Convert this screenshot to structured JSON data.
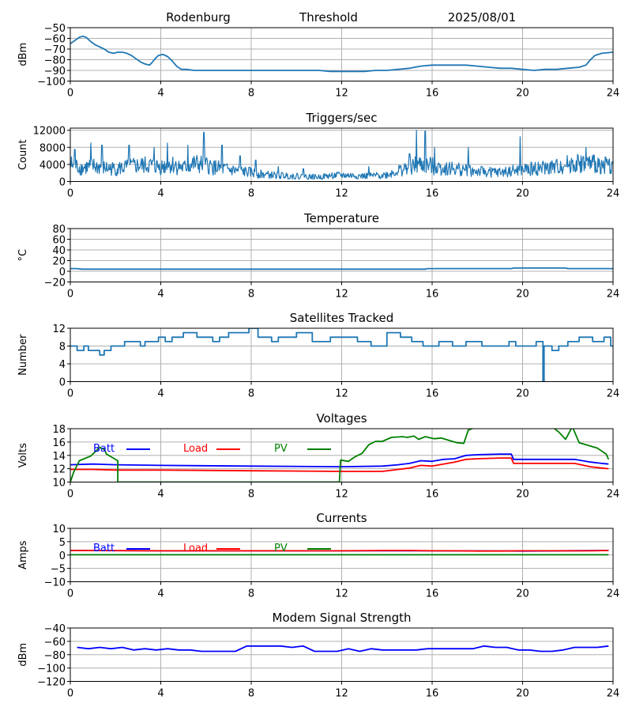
{
  "header": {
    "station": "Rodenburg",
    "mode": "Threshold",
    "date": "2025/08/01"
  },
  "legend_labels": [
    "Batt",
    "Load",
    "PV"
  ],
  "chart_data": [
    {
      "type": "line",
      "title": "",
      "ylabel": "dBm",
      "xlim": [
        0,
        24
      ],
      "ylim": [
        -100,
        -50
      ],
      "yticks": [
        -100,
        -90,
        -80,
        -70,
        -60,
        -50
      ],
      "xticks": [
        0,
        4,
        8,
        12,
        16,
        20,
        24
      ],
      "grid": true,
      "series": [
        {
          "color": "#1f77b4",
          "x": [
            0,
            0.2,
            0.4,
            0.55,
            0.7,
            0.9,
            1.1,
            1.3,
            1.5,
            1.7,
            1.9,
            2.1,
            2.3,
            2.5,
            2.7,
            2.9,
            3.1,
            3.3,
            3.5,
            3.6,
            3.75,
            3.9,
            4.1,
            4.3,
            4.5,
            4.7,
            4.9,
            5.1,
            5.5,
            6,
            7,
            8,
            9,
            10,
            11,
            11.5,
            12,
            12.5,
            13,
            13.5,
            14,
            14.5,
            15,
            15.5,
            16,
            16.5,
            17,
            17.5,
            18,
            18.5,
            19,
            19.5,
            20,
            20.5,
            21,
            21.5,
            22,
            22.5,
            22.8,
            23,
            23.2,
            23.5,
            24
          ],
          "y": [
            -65,
            -62,
            -59,
            -58,
            -59,
            -63,
            -66,
            -68,
            -70,
            -73,
            -74,
            -73,
            -73,
            -74,
            -76,
            -79,
            -82,
            -84,
            -85,
            -83,
            -79,
            -76,
            -75,
            -77,
            -81,
            -86,
            -89,
            -89,
            -90,
            -90,
            -90,
            -90,
            -90,
            -90,
            -90,
            -91,
            -91,
            -91,
            -91,
            -90,
            -90,
            -89,
            -88,
            -86,
            -85,
            -85,
            -85,
            -85,
            -86,
            -87,
            -88,
            -88,
            -89,
            -90,
            -89,
            -89,
            -88,
            -87,
            -85,
            -80,
            -76,
            -74,
            -73
          ]
        }
      ]
    },
    {
      "type": "line",
      "title": "Triggers/sec",
      "ylabel": "Count",
      "xlim": [
        0,
        24
      ],
      "ylim": [
        0,
        12500
      ],
      "yticks": [
        0,
        4000,
        8000,
        12000
      ],
      "xticks": [
        0,
        4,
        8,
        12,
        16,
        20,
        24
      ],
      "grid": true,
      "series": [
        {
          "color": "#1f77b4",
          "x": [
            0,
            0.5,
            1,
            1.5,
            2,
            2.5,
            3,
            3.5,
            4,
            4.5,
            5,
            5.5,
            6,
            6.5,
            7,
            7.5,
            8,
            8.5,
            9,
            9.5,
            10,
            10.5,
            11,
            11.5,
            12,
            12.5,
            13,
            13.5,
            14,
            14.5,
            15,
            15.5,
            16,
            16.5,
            17,
            17.5,
            18,
            18.5,
            19,
            19.5,
            20,
            20.5,
            21,
            21.5,
            22,
            22.5,
            23,
            23.5,
            24
          ],
          "y": [
            3800,
            3000,
            3400,
            3000,
            2800,
            3200,
            3500,
            3600,
            3300,
            3800,
            3000,
            3900,
            3600,
            3000,
            2600,
            2300,
            2000,
            1600,
            1400,
            1300,
            1200,
            1100,
            1000,
            1300,
            1400,
            1300,
            1200,
            1300,
            1500,
            2400,
            3200,
            3800,
            3400,
            3000,
            2800,
            2600,
            2200,
            2100,
            2000,
            2300,
            2600,
            2800,
            3000,
            3200,
            3800,
            4000,
            3900,
            3800,
            3500
          ],
          "peaks_x": [
            0.2,
            0.9,
            1.4,
            2.6,
            3.7,
            4.3,
            5.2,
            5.9,
            6.7,
            7.5,
            8.2,
            9.2,
            10.3,
            13.2,
            15.0,
            15.3,
            15.7,
            16.1,
            17.6,
            19.9,
            22.8
          ],
          "peaks_y": [
            7500,
            9000,
            8500,
            8500,
            8000,
            9000,
            8500,
            11500,
            8500,
            6000,
            5000,
            3500,
            3000,
            3500,
            6500,
            12000,
            11800,
            8000,
            8000,
            10500,
            8000
          ]
        }
      ]
    },
    {
      "type": "line",
      "title": "Temperature",
      "ylabel": "°C",
      "xlim": [
        0,
        24
      ],
      "ylim": [
        -20,
        80
      ],
      "yticks": [
        -20,
        0,
        20,
        40,
        60,
        80
      ],
      "xticks": [
        0,
        4,
        8,
        12,
        16,
        20,
        24
      ],
      "grid": true,
      "series": [
        {
          "color": "#1f77b4",
          "x": [
            0,
            0.3,
            0.5,
            4,
            8,
            12,
            15.7,
            15.8,
            19.5,
            19.6,
            21.9,
            22,
            24
          ],
          "y": [
            5,
            5,
            4,
            4,
            4,
            4,
            4,
            5,
            5,
            6,
            6,
            5,
            5
          ]
        }
      ]
    },
    {
      "type": "line",
      "title": "Satellites Tracked",
      "ylabel": "Number",
      "xlim": [
        0,
        24
      ],
      "ylim": [
        0,
        12
      ],
      "yticks": [
        0,
        4,
        8,
        12
      ],
      "xticks": [
        0,
        4,
        8,
        12,
        16,
        20,
        24
      ],
      "grid": true,
      "series": [
        {
          "color": "#1f77b4",
          "x": [
            0,
            0.3,
            0.3,
            0.6,
            0.6,
            0.8,
            0.8,
            1.3,
            1.3,
            1.5,
            1.5,
            1.8,
            1.8,
            2.4,
            2.4,
            3.1,
            3.1,
            3.3,
            3.3,
            3.9,
            3.9,
            4.2,
            4.2,
            4.5,
            4.5,
            5.0,
            5.0,
            5.6,
            5.6,
            6.3,
            6.3,
            6.6,
            6.6,
            7.0,
            7.0,
            7.9,
            7.9,
            8.3,
            8.3,
            8.9,
            8.9,
            9.2,
            9.2,
            10.0,
            10.0,
            10.7,
            10.7,
            11.5,
            11.5,
            12.7,
            12.7,
            13.3,
            13.3,
            14.0,
            14.0,
            14.6,
            14.6,
            15.1,
            15.1,
            15.6,
            15.6,
            16.3,
            16.3,
            16.9,
            16.9,
            17.5,
            17.5,
            18.2,
            18.2,
            19.4,
            19.4,
            19.7,
            19.7,
            20.6,
            20.6,
            20.9,
            20.9,
            20.95,
            20.95,
            21.3,
            21.3,
            21.6,
            21.6,
            22.0,
            22.0,
            22.5,
            22.5,
            23.1,
            23.1,
            23.6,
            23.6,
            23.9,
            23.9,
            24
          ],
          "y": [
            8,
            8,
            7,
            7,
            8,
            8,
            7,
            7,
            6,
            6,
            7,
            7,
            8,
            8,
            9,
            9,
            8,
            8,
            9,
            9,
            10,
            10,
            9,
            9,
            10,
            10,
            11,
            11,
            10,
            10,
            9,
            9,
            10,
            10,
            11,
            11,
            12,
            12,
            10,
            10,
            9,
            9,
            10,
            10,
            11,
            11,
            9,
            9,
            10,
            10,
            9,
            9,
            8,
            8,
            11,
            11,
            10,
            10,
            9,
            9,
            8,
            8,
            9,
            9,
            8,
            8,
            9,
            9,
            8,
            8,
            9,
            9,
            8,
            8,
            9,
            9,
            0,
            0,
            8,
            8,
            7,
            7,
            8,
            8,
            9,
            9,
            10,
            10,
            9,
            9,
            10,
            10,
            8,
            8
          ]
        }
      ]
    },
    {
      "type": "line",
      "title": "Voltages",
      "ylabel": "Volts",
      "xlim": [
        0,
        24
      ],
      "ylim": [
        10,
        18
      ],
      "yticks": [
        10,
        12,
        14,
        16,
        18
      ],
      "xticks": [
        0,
        4,
        8,
        12,
        16,
        20,
        24
      ],
      "grid": true,
      "series": [
        {
          "name": "Batt",
          "color": "#0000ff",
          "x": [
            0,
            1,
            2,
            4,
            8,
            12,
            13.8,
            14.5,
            15,
            15.5,
            16,
            16.5,
            17,
            17.5,
            18,
            19,
            19.5,
            19.6,
            22.3,
            23,
            23.5,
            23.8
          ],
          "y": [
            12.6,
            12.7,
            12.6,
            12.5,
            12.4,
            12.3,
            12.4,
            12.6,
            12.8,
            13.2,
            13.1,
            13.4,
            13.5,
            14.0,
            14.1,
            14.2,
            14.2,
            13.4,
            13.4,
            13.0,
            12.8,
            12.7
          ]
        },
        {
          "name": "Load",
          "color": "#ff0000",
          "x": [
            0,
            1,
            2,
            4,
            8,
            12,
            13.8,
            14.5,
            15,
            15.5,
            16,
            16.5,
            17,
            17.5,
            18,
            19,
            19.5,
            19.6,
            22.3,
            23,
            23.5,
            23.8
          ],
          "y": [
            11.9,
            11.9,
            11.8,
            11.8,
            11.7,
            11.6,
            11.6,
            11.9,
            12.1,
            12.5,
            12.4,
            12.7,
            13.0,
            13.4,
            13.5,
            13.6,
            13.6,
            12.8,
            12.8,
            12.3,
            12.1,
            12.0
          ],
          "note": "load"
        },
        {
          "name": "PV",
          "color": "#008000",
          "x": [
            0,
            0.15,
            0.4,
            0.9,
            1.15,
            1.3,
            1.5,
            1.6,
            2.1,
            2.1,
            11.9,
            11.95,
            12.3,
            12.6,
            12.9,
            13.2,
            13.5,
            13.8,
            14.2,
            14.7,
            14.9,
            15.2,
            15.4,
            15.7,
            16.1,
            16.4,
            16.8,
            17.1,
            17.4,
            17.6,
            18,
            21.3,
            21.6,
            21.9,
            22.2,
            22.5,
            22.9,
            23.3,
            23.7,
            23.8
          ],
          "y": [
            10,
            11.5,
            13.2,
            13.9,
            14.7,
            15.2,
            14.9,
            14.2,
            13.2,
            10,
            10,
            13.3,
            13.1,
            13.8,
            14.3,
            15.6,
            16.1,
            16.1,
            16.7,
            16.8,
            16.7,
            16.9,
            16.4,
            16.8,
            16.5,
            16.6,
            16.2,
            15.9,
            15.8,
            17.8,
            18.3,
            18.3,
            17.5,
            16.4,
            18.3,
            15.9,
            15.5,
            15.1,
            14.2,
            13.4
          ]
        }
      ]
    },
    {
      "type": "line",
      "title": "Currents",
      "ylabel": "Amps",
      "xlim": [
        0,
        24
      ],
      "ylim": [
        -10,
        10
      ],
      "yticks": [
        -10,
        -5,
        0,
        5,
        10
      ],
      "xticks": [
        0,
        4,
        8,
        12,
        16,
        20,
        24
      ],
      "grid": true,
      "series": [
        {
          "name": "Batt",
          "color": "#0000ff",
          "x": [
            0,
            4,
            8,
            12,
            16,
            20,
            23.8
          ],
          "y": [
            1.7,
            1.6,
            1.6,
            1.6,
            1.6,
            1.5,
            1.7
          ]
        },
        {
          "name": "Load",
          "color": "#ff0000",
          "x": [
            0,
            4,
            8,
            12,
            14,
            15,
            16,
            17,
            18,
            19,
            20,
            21,
            22,
            23,
            23.8
          ],
          "y": [
            1.7,
            1.6,
            1.6,
            1.6,
            1.7,
            1.7,
            1.6,
            1.6,
            1.5,
            1.5,
            1.6,
            1.6,
            1.6,
            1.6,
            1.7
          ]
        },
        {
          "name": "PV",
          "color": "#008000",
          "x": [
            0,
            4,
            8,
            12,
            16,
            20,
            23.8
          ],
          "y": [
            0.1,
            0.1,
            0.1,
            0.1,
            0.1,
            0.1,
            0.1
          ]
        }
      ]
    },
    {
      "type": "line",
      "title": "Modem Signal Strength",
      "ylabel": "dBm",
      "xlim": [
        0,
        24
      ],
      "ylim": [
        -120,
        -40
      ],
      "yticks": [
        -120,
        -100,
        -80,
        -60,
        -40
      ],
      "xticks": [
        0,
        4,
        8,
        12,
        16,
        20,
        24
      ],
      "grid": true,
      "series": [
        {
          "color": "#0000ff",
          "x": [
            0.3,
            0.8,
            1.3,
            1.8,
            2.3,
            2.8,
            3.3,
            3.8,
            4.3,
            4.8,
            5.3,
            5.8,
            6.3,
            6.8,
            7.3,
            7.8,
            8.3,
            8.8,
            9.3,
            9.8,
            10.3,
            10.8,
            11.3,
            11.8,
            12.3,
            12.8,
            13.3,
            13.8,
            14.3,
            14.8,
            15.3,
            15.8,
            16.3,
            16.8,
            17.3,
            17.8,
            18.3,
            18.8,
            19.3,
            19.8,
            20.3,
            20.8,
            21.3,
            21.8,
            22.3,
            22.8,
            23.3,
            23.8
          ],
          "y": [
            -69,
            -71,
            -69,
            -71,
            -69,
            -73,
            -71,
            -73,
            -71,
            -73,
            -73,
            -75,
            -75,
            -75,
            -75,
            -67,
            -67,
            -67,
            -67,
            -69,
            -67,
            -75,
            -75,
            -75,
            -71,
            -75,
            -71,
            -73,
            -73,
            -73,
            -73,
            -71,
            -71,
            -71,
            -71,
            -71,
            -67,
            -69,
            -69,
            -73,
            -73,
            -75,
            -75,
            -73,
            -69,
            -69,
            -69,
            -67
          ]
        }
      ]
    }
  ]
}
